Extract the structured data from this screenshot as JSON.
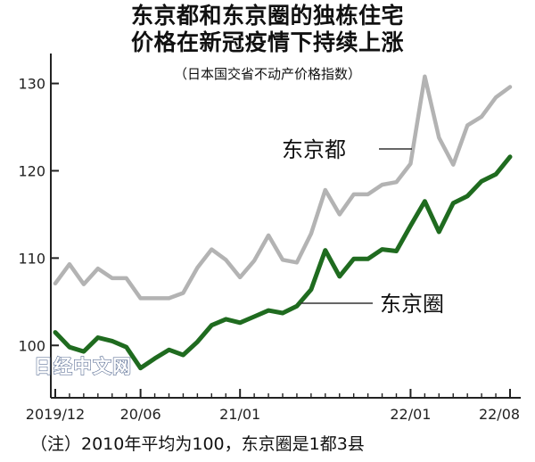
{
  "title_line1": "东京都和东京圈的独栋住宅",
  "title_line2": "价格在新冠疫情下持续上涨",
  "subtitle": "（日本国交省不动产价格指数）",
  "footnote": "（注）2010年平均为100，东京圈是1都3县",
  "watermark": "日经中文网",
  "colors": {
    "tokyo_metropolis": "#b3b3b3",
    "tokyo_area": "#1f6b1f",
    "axis": "#222222",
    "leader": "#333333"
  },
  "chart_data": {
    "type": "line",
    "ylim": [
      94,
      132
    ],
    "yticks": [
      100,
      110,
      120,
      130
    ],
    "xtick_labels": [
      "2019/12",
      "20/06",
      "21/01",
      "22/01",
      "22/08"
    ],
    "xtick_index": [
      0,
      6,
      13,
      25,
      32
    ],
    "x": [
      "2019/12",
      "2020/01",
      "2020/02",
      "2020/03",
      "2020/04",
      "2020/05",
      "2020/06",
      "2020/07",
      "2020/08",
      "2020/09",
      "2020/10",
      "2020/11",
      "2020/12",
      "2021/01",
      "2021/02",
      "2021/03",
      "2021/04",
      "2021/05",
      "2021/06",
      "2021/07",
      "2021/08",
      "2021/09",
      "2021/10",
      "2021/11",
      "2021/12",
      "2022/01",
      "2022/02",
      "2022/03",
      "2022/04",
      "2022/05",
      "2022/06",
      "2022/07",
      "2022/08"
    ],
    "series": [
      {
        "name": "东京都",
        "values": [
          107.1,
          109.3,
          107.0,
          108.8,
          107.7,
          107.7,
          105.4,
          105.4,
          105.4,
          106.0,
          108.9,
          111.0,
          109.8,
          107.8,
          109.7,
          112.6,
          109.8,
          109.5,
          112.8,
          117.8,
          115.0,
          117.3,
          117.3,
          118.4,
          118.7,
          120.8,
          130.8,
          123.8,
          120.7,
          125.2,
          126.2,
          128.4,
          129.6
        ]
      },
      {
        "name": "东京圈",
        "values": [
          101.5,
          99.8,
          99.3,
          100.9,
          100.5,
          99.8,
          97.4,
          98.5,
          99.5,
          98.9,
          100.4,
          102.3,
          103.0,
          102.6,
          103.3,
          104.0,
          103.7,
          104.5,
          106.4,
          110.9,
          107.9,
          109.9,
          109.9,
          111.0,
          110.8,
          113.7,
          116.5,
          113.0,
          116.3,
          117.1,
          118.8,
          119.6,
          121.6
        ]
      }
    ]
  }
}
